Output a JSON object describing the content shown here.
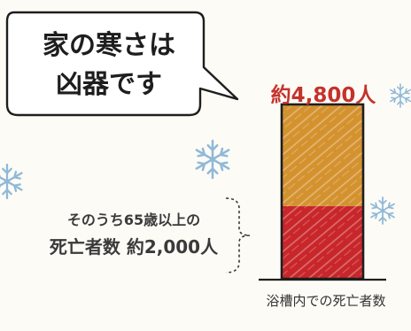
{
  "bubble": {
    "line1": "家の寒さは",
    "line2": "凶器です"
  },
  "chart_data": {
    "type": "bar",
    "stacked": true,
    "categories": [
      "浴槽内での死亡者数"
    ],
    "series": [
      {
        "values": [
          2000
        ],
        "color": "#c8262a"
      },
      {
        "values": [
          2800
        ],
        "color": "#d4922f"
      }
    ],
    "total": 4800,
    "total_label": "約4,800人",
    "annotation": {
      "line1": "そのうち65歳以上の",
      "line2": "死亡者数 約2,000人"
    },
    "xlabel": "浴槽内での死亡者数",
    "ylim": [
      0,
      4800
    ],
    "grid": false,
    "colors": {
      "frame": "#1e1e1e",
      "label_red": "#c4322c",
      "snow": "#8fb9d8"
    }
  }
}
